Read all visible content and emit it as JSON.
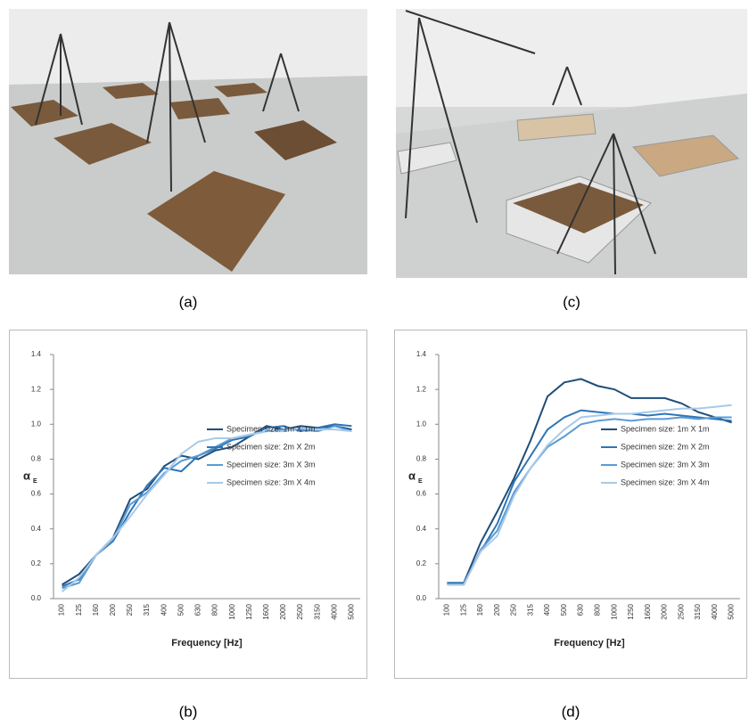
{
  "photos": [
    {
      "caption": "(a)"
    },
    {
      "caption": "(c)"
    }
  ],
  "chart_data": [
    {
      "type": "line",
      "caption": "(b)",
      "x_label": "Frequency [Hz]",
      "y_label": "α",
      "y_label_sub": "E",
      "categories": [
        "100",
        "125",
        "160",
        "200",
        "250",
        "315",
        "400",
        "500",
        "630",
        "800",
        "1000",
        "1250",
        "1600",
        "2000",
        "2500",
        "3150",
        "4000",
        "5000"
      ],
      "ylim": [
        0,
        1.4
      ],
      "yticks": [
        {
          "value": 0,
          "label": "0.0"
        },
        0.2,
        0.4,
        0.6,
        0.8,
        {
          "value": 1,
          "label": "1.0"
        },
        1.2,
        1.4
      ],
      "series": [
        {
          "name": "Specimen size: 1m X 1m",
          "color": "#1f4e79",
          "values": [
            0.08,
            0.14,
            0.25,
            0.35,
            0.57,
            0.63,
            0.76,
            0.82,
            0.8,
            0.85,
            0.87,
            0.93,
            0.99,
            0.97,
            0.99,
            0.98,
            0.99,
            0.97
          ]
        },
        {
          "name": "Specimen size: 2m X 2m",
          "color": "#2e75b6",
          "values": [
            0.07,
            0.11,
            0.25,
            0.33,
            0.5,
            0.65,
            0.75,
            0.73,
            0.82,
            0.86,
            0.91,
            0.93,
            0.98,
            0.99,
            0.96,
            0.98,
            1.0,
            0.99
          ]
        },
        {
          "name": "Specimen size: 3m X 3m",
          "color": "#5b9bd5",
          "values": [
            0.06,
            0.09,
            0.25,
            0.34,
            0.54,
            0.61,
            0.72,
            0.79,
            0.82,
            0.87,
            0.92,
            0.94,
            0.96,
            0.97,
            0.97,
            0.96,
            0.99,
            0.96
          ]
        },
        {
          "name": "Specimen size: 3m X 4m",
          "color": "#a9c9e8",
          "values": [
            0.04,
            0.12,
            0.25,
            0.35,
            0.47,
            0.6,
            0.71,
            0.83,
            0.9,
            0.92,
            0.92,
            0.94,
            0.96,
            0.96,
            0.98,
            0.97,
            0.97,
            0.96
          ]
        }
      ]
    },
    {
      "type": "line",
      "caption": "(d)",
      "x_label": "Frequency [Hz]",
      "y_label": "α",
      "y_label_sub": "E",
      "categories": [
        "100",
        "125",
        "160",
        "200",
        "250",
        "315",
        "400",
        "500",
        "630",
        "800",
        "1000",
        "1250",
        "1600",
        "2000",
        "2500",
        "3150",
        "4000",
        "5000"
      ],
      "ylim": [
        0,
        1.4
      ],
      "yticks": [
        {
          "value": 0,
          "label": "0.0"
        },
        0.2,
        0.4,
        0.6,
        0.8,
        {
          "value": 1,
          "label": "1.0"
        },
        1.2,
        1.4
      ],
      "series": [
        {
          "name": "Specimen size: 1m X 1m",
          "color": "#1f4e79",
          "values": [
            0.09,
            0.09,
            0.32,
            0.5,
            0.69,
            0.91,
            1.16,
            1.24,
            1.26,
            1.22,
            1.2,
            1.15,
            1.15,
            1.15,
            1.12,
            1.07,
            1.04,
            1.01
          ]
        },
        {
          "name": "Specimen size: 2m X 2m",
          "color": "#2e75b6",
          "values": [
            0.09,
            0.09,
            0.27,
            0.43,
            0.67,
            0.82,
            0.97,
            1.04,
            1.08,
            1.07,
            1.06,
            1.06,
            1.05,
            1.06,
            1.05,
            1.04,
            1.03,
            1.02
          ]
        },
        {
          "name": "Specimen size: 3m X 3m",
          "color": "#5b9bd5",
          "values": [
            0.08,
            0.08,
            0.28,
            0.39,
            0.61,
            0.75,
            0.87,
            0.93,
            1.0,
            1.02,
            1.03,
            1.02,
            1.03,
            1.03,
            1.04,
            1.03,
            1.04,
            1.04
          ]
        },
        {
          "name": "Specimen size: 3m X 4m",
          "color": "#a9c9e8",
          "values": [
            0.08,
            0.08,
            0.27,
            0.36,
            0.59,
            0.75,
            0.88,
            0.97,
            1.04,
            1.05,
            1.06,
            1.06,
            1.07,
            1.08,
            1.09,
            1.09,
            1.1,
            1.11
          ]
        }
      ]
    }
  ]
}
